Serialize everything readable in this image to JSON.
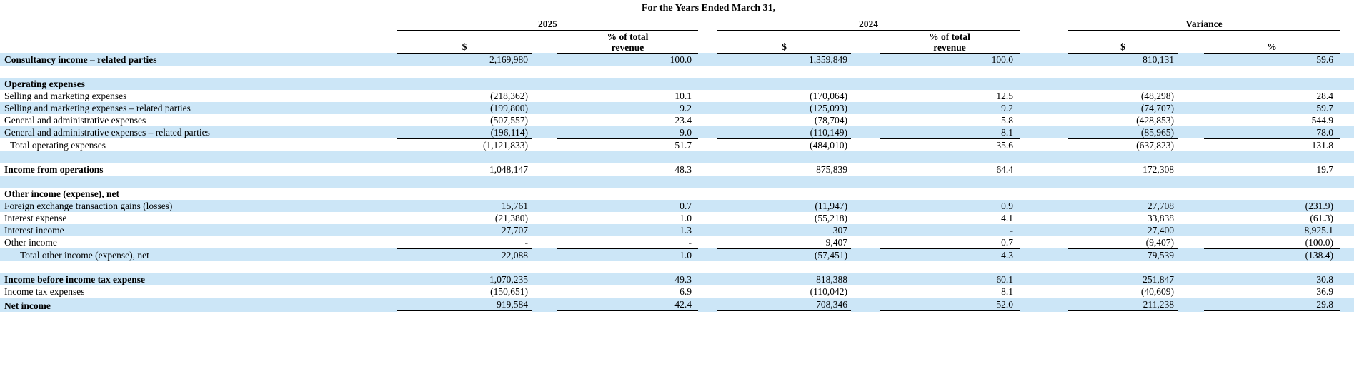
{
  "colors": {
    "stripe_blue": "#CCE6F7",
    "text": "#000000",
    "rule": "#000000"
  },
  "table": {
    "title": "For the Years Ended March 31,",
    "col_groups": {
      "y2025": "2025",
      "y2024": "2024",
      "variance": "Variance"
    },
    "sub_headers": {
      "usd": "$",
      "pct_of_revenue": "% of total revenue",
      "pct": "%"
    },
    "rows": [
      {
        "label": "Consultancy income – related parties",
        "bold": true,
        "stripe": true,
        "cells": [
          "2,169,980",
          "100.0",
          "1,359,849",
          "100.0",
          "810,131",
          "59.6"
        ]
      },
      {
        "label": "",
        "stripe": false,
        "cells": [
          "",
          "",
          "",
          "",
          "",
          ""
        ]
      },
      {
        "label": "Operating expenses",
        "bold": true,
        "stripe": true,
        "cells": [
          "",
          "",
          "",
          "",
          "",
          ""
        ]
      },
      {
        "label": "Selling and marketing expenses",
        "stripe": false,
        "cells": [
          "(218,362)",
          "10.1",
          "(170,064)",
          "12.5",
          "(48,298)",
          "28.4"
        ]
      },
      {
        "label": "Selling and marketing expenses – related parties",
        "stripe": true,
        "cells": [
          "(199,800)",
          "9.2",
          "(125,093)",
          "9.2",
          "(74,707)",
          "59.7"
        ]
      },
      {
        "label": "General and administrative expenses",
        "stripe": false,
        "cells": [
          "(507,557)",
          "23.4",
          "(78,704)",
          "5.8",
          "(428,853)",
          "544.9"
        ]
      },
      {
        "label": "General and administrative expenses – related parties",
        "stripe": true,
        "border": "single",
        "cells": [
          "(196,114)",
          "9.0",
          "(110,149)",
          "8.1",
          "(85,965)",
          "78.0"
        ]
      },
      {
        "label": "Total operating expenses",
        "indent": 1,
        "stripe": false,
        "cells": [
          "(1,121,833)",
          "51.7",
          "(484,010)",
          "35.6",
          "(637,823)",
          "131.8"
        ]
      },
      {
        "label": "",
        "stripe": true,
        "cells": [
          "",
          "",
          "",
          "",
          "",
          ""
        ]
      },
      {
        "label": "Income from operations",
        "bold": true,
        "stripe": false,
        "cells": [
          "1,048,147",
          "48.3",
          "875,839",
          "64.4",
          "172,308",
          "19.7"
        ]
      },
      {
        "label": "",
        "stripe": true,
        "cells": [
          "",
          "",
          "",
          "",
          "",
          ""
        ]
      },
      {
        "label": "Other income (expense), net",
        "bold": true,
        "stripe": false,
        "cells": [
          "",
          "",
          "",
          "",
          "",
          ""
        ]
      },
      {
        "label": "Foreign exchange transaction gains (losses)",
        "stripe": true,
        "cells": [
          "15,761",
          "0.7",
          "(11,947)",
          "0.9",
          "27,708",
          "(231.9)"
        ]
      },
      {
        "label": "Interest expense",
        "stripe": false,
        "cells": [
          "(21,380)",
          "1.0",
          "(55,218)",
          "4.1",
          "33,838",
          "(61.3)"
        ]
      },
      {
        "label": "Interest income",
        "stripe": true,
        "cells": [
          "27,707",
          "1.3",
          "307",
          "-",
          "27,400",
          "8,925.1"
        ]
      },
      {
        "label": "Other income",
        "stripe": false,
        "border": "single",
        "cells": [
          "-",
          "-",
          "9,407",
          "0.7",
          "(9,407)",
          "(100.0)"
        ]
      },
      {
        "label": "Total other income (expense), net",
        "indent": 2,
        "stripe": true,
        "cells": [
          "22,088",
          "1.0",
          "(57,451)",
          "4.3",
          "79,539",
          "(138.4)"
        ]
      },
      {
        "label": "",
        "stripe": false,
        "cells": [
          "",
          "",
          "",
          "",
          "",
          ""
        ]
      },
      {
        "label": "Income before income tax expense",
        "bold": true,
        "stripe": true,
        "cells": [
          "1,070,235",
          "49.3",
          "818,388",
          "60.1",
          "251,847",
          "30.8"
        ]
      },
      {
        "label": "Income tax expenses",
        "stripe": false,
        "border": "single",
        "cells": [
          "(150,651)",
          "6.9",
          "(110,042)",
          "8.1",
          "(40,609)",
          "36.9"
        ]
      },
      {
        "label": "Net income",
        "bold": true,
        "stripe": true,
        "border": "double",
        "cells": [
          "919,584",
          "42.4",
          "708,346",
          "52.0",
          "211,238",
          "29.8"
        ]
      }
    ]
  }
}
